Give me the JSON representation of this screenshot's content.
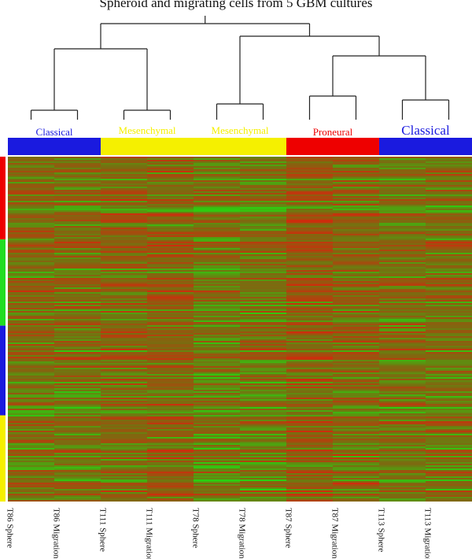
{
  "chart_data": {
    "type": "heatmap",
    "title": "Spheroid and migrating cells from 5 GBM cultures",
    "columns": [
      "T86 Sphere",
      "T86 Migration",
      "T111 Sphere",
      "T111 Migration",
      "T78 Sphere",
      "T78 Migration",
      "T87 Sphere",
      "T87 Migration",
      "T113 Sphere",
      "T113 Migration"
    ],
    "subtype_groups": [
      {
        "label": "Classical",
        "color": "#1a1adf",
        "columns": [
          "T86 Sphere",
          "T86 Migration"
        ]
      },
      {
        "label": "Mesenchymal",
        "color": "#f5f000",
        "columns": [
          "T111 Sphere",
          "T111 Migration"
        ]
      },
      {
        "label": "Mesenchymal",
        "color": "#f5f000",
        "columns": [
          "T78 Sphere",
          "T78 Migration"
        ]
      },
      {
        "label": "Proneural",
        "color": "#ee0000",
        "columns": [
          "T87 Sphere",
          "T87 Migration"
        ]
      },
      {
        "label": "Classical",
        "color": "#1a1adf",
        "columns": [
          "T113 Sphere",
          "T113 Migration"
        ]
      }
    ],
    "row_groups": [
      {
        "color": "#ee0000",
        "fraction": 0.24
      },
      {
        "color": "#22dd22",
        "fraction": 0.25
      },
      {
        "color": "#1a1adf",
        "fraction": 0.26
      },
      {
        "color": "#f5f000",
        "fraction": 0.25
      }
    ],
    "dendrogram": {
      "merge_order": [
        [
          "T86 Sphere",
          "T86 Migration"
        ],
        [
          "T111 Sphere",
          "T111 Migration"
        ],
        [
          "T78 Sphere",
          "T78 Migration"
        ],
        [
          "T87 Sphere",
          "T87 Migration"
        ],
        [
          "T113 Sphere",
          "T113 Migration"
        ],
        [
          "Classical (T86)",
          "Mesenchymal (T111)"
        ],
        [
          "Proneural (T87)",
          "Classical (T113)"
        ],
        [
          "Mesenchymal (T78)",
          "Proneural + Classical"
        ],
        [
          "all"
        ]
      ]
    },
    "color_scale": {
      "low": "#28d010",
      "mid": "#7a6a10",
      "high": "#c83010"
    }
  }
}
